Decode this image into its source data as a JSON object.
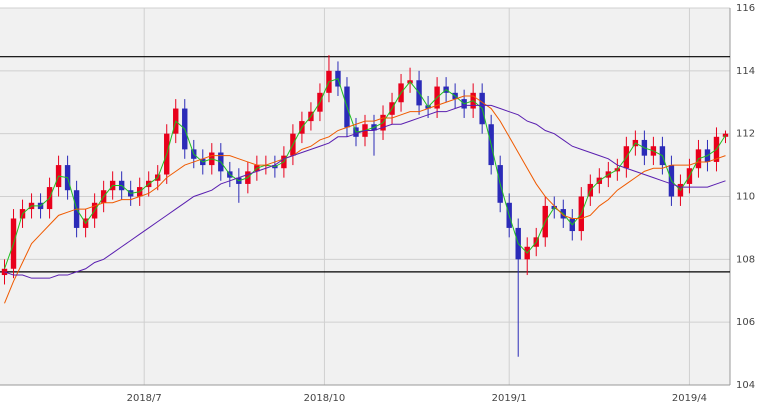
{
  "chart_data": {
    "type": "candlestick",
    "up_color": "#e8001c",
    "down_color": "#2b2bb8",
    "ylim": [
      104,
      116
    ],
    "yticks": [
      104,
      106,
      108,
      110,
      112,
      114,
      116
    ],
    "xlim": [
      -0.5,
      80.5
    ],
    "xticks": [
      {
        "value": 15.5,
        "label": "2018/7"
      },
      {
        "value": 35.5,
        "label": "2018/10"
      },
      {
        "value": 56,
        "label": "2019/1"
      },
      {
        "value": 76,
        "label": "2019/4"
      }
    ],
    "grid": true,
    "hlines": [
      114.45,
      107.6
    ],
    "open": [
      107.5,
      107.7,
      109.3,
      109.6,
      109.8,
      109.6,
      110.3,
      111.0,
      110.2,
      109.0,
      109.3,
      109.8,
      110.2,
      110.5,
      110.2,
      110.0,
      110.3,
      110.5,
      110.7,
      112.0,
      112.8,
      111.5,
      111.2,
      111.0,
      111.4,
      110.8,
      110.6,
      110.4,
      110.8,
      111.0,
      111.0,
      110.9,
      111.3,
      112.0,
      112.4,
      112.7,
      113.3,
      114.0,
      113.5,
      112.2,
      111.9,
      112.3,
      112.1,
      112.6,
      113.0,
      113.6,
      113.7,
      112.9,
      112.8,
      113.5,
      113.3,
      113.1,
      112.8,
      113.3,
      112.3,
      111.0,
      109.8,
      109.0,
      108.0,
      108.4,
      108.7,
      109.7,
      109.6,
      109.3,
      108.9,
      110.0,
      110.4,
      110.6,
      110.8,
      110.9,
      111.6,
      111.8,
      111.3,
      111.6,
      111.0,
      110.0,
      110.4,
      110.9,
      111.5,
      111.1,
      111.9
    ],
    "high": [
      108.0,
      109.6,
      109.9,
      110.1,
      110.1,
      110.6,
      111.3,
      111.3,
      110.5,
      109.6,
      110.1,
      110.5,
      110.8,
      110.8,
      110.5,
      110.6,
      110.8,
      111.0,
      112.3,
      113.1,
      113.1,
      111.8,
      111.5,
      111.7,
      111.7,
      111.1,
      110.9,
      111.1,
      111.3,
      111.3,
      111.3,
      111.6,
      112.3,
      112.7,
      113.0,
      113.6,
      114.5,
      114.3,
      113.8,
      112.5,
      112.6,
      112.6,
      112.9,
      113.3,
      113.9,
      114.1,
      114.0,
      113.2,
      113.8,
      113.8,
      113.6,
      113.4,
      113.6,
      113.6,
      112.6,
      111.3,
      110.1,
      109.3,
      108.7,
      109.0,
      110.0,
      110.0,
      109.9,
      109.6,
      110.3,
      110.7,
      110.9,
      111.1,
      111.2,
      111.9,
      112.1,
      112.1,
      111.9,
      111.9,
      111.3,
      110.7,
      111.2,
      111.8,
      111.8,
      112.2,
      112.1
    ],
    "low": [
      107.2,
      107.4,
      109.0,
      109.3,
      109.3,
      109.3,
      110.0,
      109.9,
      108.7,
      108.7,
      109.0,
      109.5,
      109.9,
      109.9,
      109.7,
      109.7,
      110.0,
      110.2,
      110.4,
      111.7,
      111.2,
      110.9,
      110.7,
      110.7,
      110.5,
      110.3,
      109.8,
      110.1,
      110.5,
      110.7,
      110.6,
      110.6,
      111.0,
      111.7,
      112.1,
      112.4,
      113.0,
      113.2,
      111.9,
      111.6,
      111.6,
      111.3,
      111.8,
      112.3,
      112.7,
      113.3,
      112.6,
      112.5,
      112.5,
      113.0,
      112.8,
      112.5,
      112.5,
      112.0,
      110.7,
      109.5,
      108.7,
      104.9,
      107.5,
      108.1,
      108.4,
      109.3,
      109.0,
      108.6,
      108.6,
      109.7,
      110.1,
      110.3,
      110.5,
      110.6,
      111.3,
      111.0,
      111.0,
      110.7,
      109.7,
      109.7,
      110.1,
      110.6,
      110.8,
      110.8,
      111.7
    ],
    "close": [
      107.7,
      109.3,
      109.6,
      109.8,
      109.6,
      110.3,
      111.0,
      110.2,
      109.0,
      109.3,
      109.8,
      110.2,
      110.5,
      110.2,
      110.0,
      110.3,
      110.5,
      110.7,
      112.0,
      112.8,
      111.5,
      111.2,
      111.0,
      111.4,
      110.8,
      110.6,
      110.4,
      110.8,
      111.0,
      111.0,
      110.9,
      111.3,
      112.0,
      112.4,
      112.7,
      113.3,
      114.0,
      113.5,
      112.2,
      111.9,
      112.3,
      112.1,
      112.6,
      113.0,
      113.6,
      113.7,
      112.9,
      112.8,
      113.5,
      113.3,
      113.1,
      112.8,
      113.3,
      112.3,
      111.0,
      109.8,
      109.0,
      108.0,
      108.4,
      108.7,
      109.7,
      109.6,
      109.3,
      108.9,
      110.0,
      110.4,
      110.6,
      110.8,
      110.9,
      111.6,
      111.8,
      111.3,
      111.6,
      111.0,
      110.0,
      110.4,
      110.9,
      111.5,
      111.1,
      111.9,
      112.0
    ],
    "series": [
      {
        "color": "#1fbf1f",
        "values": [
          107.7,
          108.5,
          109.45,
          109.7,
          109.7,
          109.95,
          110.65,
          110.6,
          109.6,
          109.15,
          109.55,
          110.0,
          110.35,
          110.35,
          110.1,
          110.15,
          110.4,
          110.6,
          111.35,
          112.4,
          112.15,
          111.35,
          111.1,
          111.2,
          111.1,
          110.7,
          110.5,
          110.6,
          110.9,
          111.0,
          110.95,
          111.1,
          111.65,
          112.2,
          112.55,
          113.0,
          113.65,
          113.75,
          112.85,
          112.05,
          112.1,
          112.2,
          112.35,
          112.8,
          113.3,
          113.65,
          113.3,
          112.85,
          113.15,
          113.4,
          113.2,
          112.95,
          113.05,
          112.8,
          111.65,
          110.4,
          109.4,
          108.5,
          108.2,
          108.55,
          109.2,
          109.65,
          109.45,
          109.1,
          109.45,
          110.2,
          110.5,
          110.7,
          110.85,
          111.25,
          111.7,
          111.55,
          111.45,
          111.3,
          110.5,
          110.2,
          110.65,
          111.2,
          111.3,
          111.5,
          111.95
        ]
      },
      {
        "color": "#f05a00",
        "values": [
          106.6,
          107.3,
          107.9,
          108.5,
          108.8,
          109.1,
          109.4,
          109.5,
          109.6,
          109.6,
          109.7,
          109.8,
          109.8,
          109.9,
          109.9,
          110.0,
          110.1,
          110.3,
          110.6,
          110.8,
          111.0,
          111.1,
          111.2,
          111.3,
          111.3,
          111.3,
          111.2,
          111.1,
          111.0,
          111.0,
          111.1,
          111.2,
          111.3,
          111.5,
          111.6,
          111.8,
          111.9,
          112.1,
          112.2,
          112.3,
          112.4,
          112.4,
          112.5,
          112.5,
          112.6,
          112.7,
          112.7,
          112.8,
          112.9,
          113.0,
          113.1,
          113.2,
          113.2,
          113.0,
          112.8,
          112.4,
          111.9,
          111.4,
          110.9,
          110.4,
          110.0,
          109.7,
          109.4,
          109.3,
          109.3,
          109.4,
          109.7,
          109.9,
          110.2,
          110.4,
          110.6,
          110.8,
          110.9,
          110.9,
          111.0,
          111.0,
          111.0,
          111.1,
          111.1,
          111.2,
          111.3
        ]
      },
      {
        "color": "#5a1fb0",
        "values": [
          107.6,
          107.5,
          107.5,
          107.4,
          107.4,
          107.4,
          107.5,
          107.5,
          107.6,
          107.7,
          107.9,
          108.0,
          108.2,
          108.4,
          108.6,
          108.8,
          109.0,
          109.2,
          109.4,
          109.6,
          109.8,
          110.0,
          110.1,
          110.2,
          110.4,
          110.5,
          110.6,
          110.7,
          110.8,
          110.9,
          111.0,
          111.2,
          111.3,
          111.4,
          111.5,
          111.6,
          111.7,
          111.9,
          111.9,
          112.0,
          112.1,
          112.1,
          112.2,
          112.3,
          112.3,
          112.4,
          112.5,
          112.6,
          112.7,
          112.7,
          112.8,
          112.9,
          112.9,
          112.9,
          112.9,
          112.8,
          112.7,
          112.6,
          112.4,
          112.3,
          112.1,
          112.0,
          111.8,
          111.6,
          111.5,
          111.4,
          111.3,
          111.2,
          111.0,
          110.9,
          110.8,
          110.7,
          110.6,
          110.5,
          110.4,
          110.3,
          110.3,
          110.3,
          110.3,
          110.4,
          110.5
        ]
      }
    ]
  }
}
